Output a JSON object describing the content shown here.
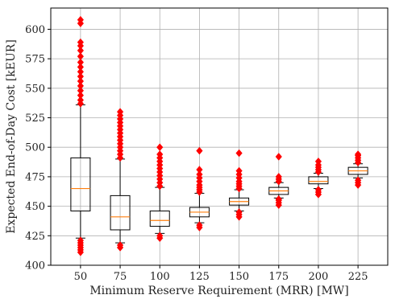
{
  "chart_data": {
    "type": "box",
    "title": "",
    "xlabel": "Minimum Reserve Requirement (MRR) [MW]",
    "ylabel": "Expected End-of-Day Cost [kEUR]",
    "ylim": [
      400,
      618
    ],
    "yticks": [
      400,
      425,
      450,
      475,
      500,
      525,
      550,
      575,
      600
    ],
    "grid": true,
    "categories": [
      "50",
      "75",
      "100",
      "125",
      "150",
      "175",
      "200",
      "225"
    ],
    "colors": {
      "box": "#000000",
      "median": "#ff7f0e",
      "outlier": "#ff0000",
      "grid": "#b0b0b0"
    },
    "boxes": [
      {
        "category": "50",
        "whisker_low": 423,
        "q1": 446,
        "median": 465,
        "q3": 491,
        "whisker_high": 536,
        "outliers": [
          411,
          413,
          415,
          417,
          419,
          421,
          537,
          540,
          544,
          548,
          552,
          556,
          560,
          564,
          568,
          572,
          577,
          582,
          586,
          589,
          605,
          608
        ]
      },
      {
        "category": "75",
        "whisker_low": 419,
        "q1": 430,
        "median": 441,
        "q3": 459,
        "whisker_high": 490,
        "outliers": [
          415,
          417,
          491,
          494,
          497,
          500,
          503,
          506,
          509,
          512,
          515,
          518,
          521,
          524,
          527,
          530
        ]
      },
      {
        "category": "100",
        "whisker_low": 427,
        "q1": 433,
        "median": 438,
        "q3": 446,
        "whisker_high": 466,
        "outliers": [
          423,
          425,
          467,
          470,
          473,
          476,
          479,
          482,
          485,
          488,
          491,
          494,
          500
        ]
      },
      {
        "category": "125",
        "whisker_low": 436,
        "q1": 441,
        "median": 445,
        "q3": 449,
        "whisker_high": 461,
        "outliers": [
          432,
          434,
          462,
          464,
          466,
          468,
          471,
          474,
          477,
          481,
          497
        ]
      },
      {
        "category": "150",
        "whisker_low": 446,
        "q1": 451,
        "median": 454,
        "q3": 457,
        "whisker_high": 464,
        "outliers": [
          441,
          443,
          445,
          465,
          467,
          469,
          471,
          474,
          477,
          480,
          495
        ]
      },
      {
        "category": "175",
        "whisker_low": 457,
        "q1": 460,
        "median": 463,
        "q3": 466,
        "whisker_high": 470,
        "outliers": [
          451,
          453,
          455,
          456,
          471,
          473,
          475,
          492
        ]
      },
      {
        "category": "200",
        "whisker_low": 465,
        "q1": 469,
        "median": 471,
        "q3": 475,
        "whisker_high": 478,
        "outliers": [
          460,
          462,
          464,
          479,
          481,
          483,
          485,
          488
        ]
      },
      {
        "category": "225",
        "whisker_low": 474,
        "q1": 477,
        "median": 480,
        "q3": 483,
        "whisker_high": 486,
        "outliers": [
          468,
          470,
          472,
          487,
          489,
          491,
          493,
          494
        ]
      }
    ]
  }
}
